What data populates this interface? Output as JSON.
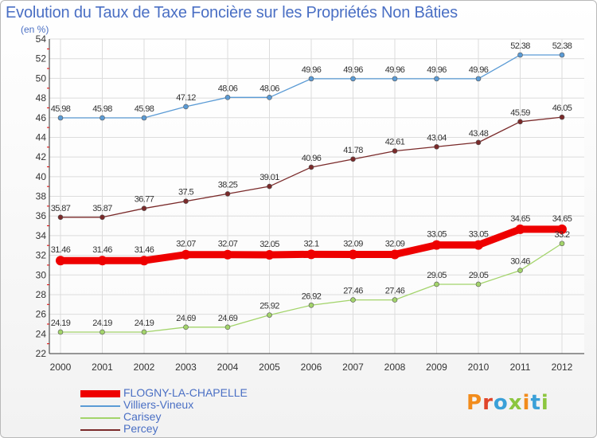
{
  "title": "Evolution du Taux de Taxe Foncière sur les Propriétés Non Bâties",
  "subtitle": "(en %)",
  "brand": {
    "letters": [
      "P",
      "r",
      "o",
      "x",
      "i",
      "t",
      "i"
    ],
    "colors": [
      "#f28c1c",
      "#e0442a",
      "#3aa0d8",
      "#8cc63f",
      "#f28c1c",
      "#3aa0d8",
      "#8cc63f"
    ]
  },
  "chart_data": {
    "type": "line",
    "x": [
      "2000",
      "2001",
      "2002",
      "2003",
      "2004",
      "2005",
      "2006",
      "2007",
      "2008",
      "2009",
      "2010",
      "2011",
      "2012"
    ],
    "ylim": [
      22,
      54
    ],
    "yticks": [
      22,
      24,
      26,
      28,
      30,
      32,
      34,
      36,
      38,
      40,
      42,
      44,
      46,
      48,
      50,
      52,
      54
    ],
    "grid": true,
    "legend_position": "bottom-left",
    "series": [
      {
        "name": "Villiers-Vineux",
        "color": "#5b9bd5",
        "values": [
          45.98,
          45.98,
          45.98,
          47.12,
          48.06,
          48.06,
          49.96,
          49.96,
          49.96,
          49.96,
          49.96,
          52.38,
          52.38
        ],
        "labels": [
          "45.98",
          "45.98",
          "45.98",
          "47.12",
          "48.06",
          "48.06",
          "49.96",
          "49.96",
          "49.96",
          "49.96",
          "49.96",
          "52.38",
          "52.38"
        ],
        "highlight": false
      },
      {
        "name": "Percey",
        "color": "#7a2a2a",
        "values": [
          35.87,
          35.87,
          36.77,
          37.5,
          38.25,
          39.01,
          40.96,
          41.78,
          42.61,
          43.04,
          43.48,
          45.59,
          46.05
        ],
        "labels": [
          "35.87",
          "35.87",
          "36.77",
          "37.5",
          "38.25",
          "39.01",
          "40.96",
          "41.78",
          "42.61",
          "43.04",
          "43.48",
          "45.59",
          "46.05"
        ],
        "highlight": false
      },
      {
        "name": "FLOGNY-LA-CHAPELLE",
        "color": "#ee0000",
        "values": [
          31.46,
          31.46,
          31.46,
          32.07,
          32.07,
          32.05,
          32.1,
          32.09,
          32.09,
          33.05,
          33.05,
          34.65,
          34.65
        ],
        "labels": [
          "31.46",
          "31.46",
          "31.46",
          "32.07",
          "32.07",
          "32.05",
          "32.1",
          "32.09",
          "32.09",
          "33.05",
          "33.05",
          "34.65",
          "34.65"
        ],
        "highlight": true
      },
      {
        "name": "Carisey",
        "color": "#a3d46b",
        "values": [
          24.19,
          24.19,
          24.19,
          24.69,
          24.69,
          25.92,
          26.92,
          27.46,
          27.46,
          29.05,
          29.05,
          30.46,
          33.2
        ],
        "labels": [
          "24.19",
          "24.19",
          "24.19",
          "24.69",
          "24.69",
          "25.92",
          "26.92",
          "27.46",
          "27.46",
          "29.05",
          "29.05",
          "30.46",
          "33.2"
        ],
        "highlight": false
      }
    ],
    "legend_order": [
      "FLOGNY-LA-CHAPELLE",
      "Villiers-Vineux",
      "Carisey",
      "Percey"
    ]
  }
}
